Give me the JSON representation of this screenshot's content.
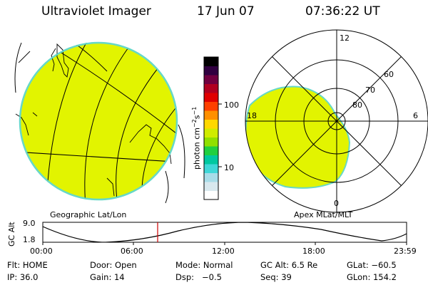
{
  "header": {
    "title": "Ultraviolet Imager",
    "date": "17 Jun 07",
    "time": "07:36:22 UT"
  },
  "colorbar": {
    "label_main": "photon cm",
    "label_sup1": "−2",
    "label_mid": "s",
    "label_sup2": "−1",
    "tick_100": "100",
    "tick_10": "10",
    "colors": [
      "#ffffff",
      "#d8e8ee",
      "#a8dce8",
      "#3fd7d7",
      "#00c8a0",
      "#20d040",
      "#90e000",
      "#d0ec00",
      "#ffd800",
      "#ff9000",
      "#ff4000",
      "#e00000",
      "#b00020",
      "#700040",
      "#300040",
      "#000000"
    ]
  },
  "left_panel": {
    "caption": "Geographic Lat/Lon",
    "fill_color": "#e2f400",
    "edge_color": "#66d8c8"
  },
  "right_panel": {
    "caption": "Apex MLat/MLT",
    "fill_color": "#e2f400",
    "mlt_top": "12",
    "mlt_left": "18",
    "mlt_right": "6",
    "mlt_bottom": "0",
    "lat_60": "60",
    "lat_70": "70",
    "lat_80": "80"
  },
  "altitude_plot": {
    "ylabel": "GC Alt",
    "ymax_label": "9.0",
    "ymin_label": "1.8",
    "x_ticks": [
      "00:00",
      "06:00",
      "12:00",
      "18:00",
      "23:59"
    ],
    "marker_color": "#cc0000"
  },
  "info": {
    "flt_label": "Flt:",
    "flt_value": "HOME",
    "ip_label": "IP:",
    "ip_value": "36.0",
    "door_label": "Door:",
    "door_value": "Open",
    "gain_label": "Gain:",
    "gain_value": "14",
    "mode_label": "Mode:",
    "mode_value": "Normal",
    "dsp_label": "Dsp:",
    "dsp_value": "−0.5",
    "gcalt_label": "GC Alt:",
    "gcalt_value": "6.5 Re",
    "seq_label": "Seq:",
    "seq_value": "39",
    "glat_label": "GLat:",
    "glat_value": "−60.5",
    "glon_label": "GLon:",
    "glon_value": "154.2"
  }
}
